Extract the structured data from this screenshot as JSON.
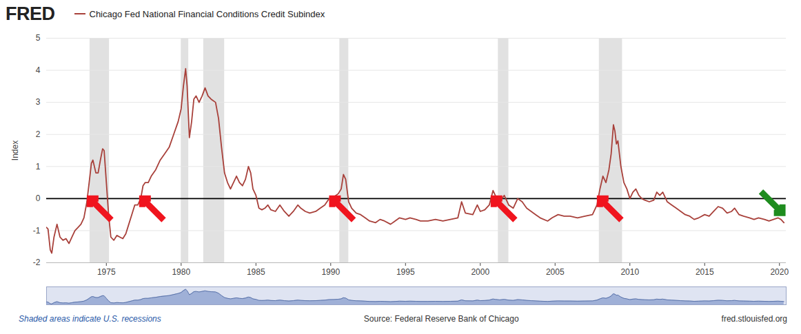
{
  "chart_data": {
    "type": "line",
    "logo": "FRED",
    "ylabel": "Index",
    "note": "Shaded areas indicate U.S. recessions",
    "source": "Source: Federal Reserve Bank of Chicago",
    "url": "fred.stlouisfed.org",
    "xlim": [
      1971,
      2020.45
    ],
    "xticks": [
      1975,
      1980,
      1985,
      1990,
      1995,
      2000,
      2005,
      2010,
      2015,
      2020
    ],
    "ylim": [
      -2,
      5
    ],
    "yticks": [
      -2,
      -1,
      0,
      1,
      2,
      3,
      4,
      5
    ],
    "grid": true,
    "hline": 0,
    "recessions": [
      [
        1973.9,
        1975.2
      ],
      [
        1980.0,
        1980.5
      ],
      [
        1981.5,
        1982.9
      ],
      [
        1990.6,
        1991.2
      ],
      [
        2001.2,
        2001.9
      ],
      [
        2007.95,
        2009.5
      ]
    ],
    "arrows": [
      {
        "x": 1973.9,
        "y": 0,
        "color": "#f0141e",
        "direction": "up-left"
      },
      {
        "x": 1977.4,
        "y": 0,
        "color": "#f0141e",
        "direction": "up-left"
      },
      {
        "x": 1990.1,
        "y": 0,
        "color": "#f0141e",
        "direction": "up-left"
      },
      {
        "x": 2000.9,
        "y": 0,
        "color": "#f0141e",
        "direction": "up-left"
      },
      {
        "x": 2008.0,
        "y": 0,
        "color": "#f0141e",
        "direction": "up-left"
      },
      {
        "x": 2020.2,
        "y": -0.45,
        "color": "#1e8c1e",
        "direction": "down-right"
      }
    ],
    "x": [
      1971.0,
      1971.1,
      1971.25,
      1971.35,
      1971.5,
      1971.7,
      1971.9,
      1972.1,
      1972.3,
      1972.5,
      1972.7,
      1972.9,
      1973.1,
      1973.3,
      1973.5,
      1973.7,
      1973.85,
      1974.0,
      1974.1,
      1974.3,
      1974.45,
      1974.6,
      1974.75,
      1974.85,
      1975.0,
      1975.15,
      1975.3,
      1975.5,
      1975.7,
      1975.9,
      1976.1,
      1976.3,
      1976.5,
      1976.7,
      1976.9,
      1977.1,
      1977.3,
      1977.45,
      1977.6,
      1977.8,
      1978.0,
      1978.3,
      1978.6,
      1978.9,
      1979.2,
      1979.5,
      1979.8,
      1980.0,
      1980.15,
      1980.3,
      1980.4,
      1980.55,
      1980.7,
      1980.85,
      1981.0,
      1981.2,
      1981.4,
      1981.6,
      1981.8,
      1982.0,
      1982.3,
      1982.5,
      1982.7,
      1982.9,
      1983.1,
      1983.3,
      1983.5,
      1983.7,
      1983.9,
      1984.1,
      1984.3,
      1984.5,
      1984.65,
      1984.8,
      1985.0,
      1985.2,
      1985.4,
      1985.6,
      1985.8,
      1986.0,
      1986.3,
      1986.6,
      1986.9,
      1987.2,
      1987.5,
      1987.8,
      1988.0,
      1988.3,
      1988.6,
      1989.0,
      1989.3,
      1989.6,
      1989.9,
      1990.2,
      1990.5,
      1990.7,
      1990.85,
      1991.0,
      1991.2,
      1991.4,
      1991.7,
      1992.0,
      1992.3,
      1992.6,
      1993.0,
      1993.3,
      1993.6,
      1994.0,
      1994.3,
      1994.6,
      1995.0,
      1995.3,
      1995.7,
      1996.0,
      1996.5,
      1997.0,
      1997.5,
      1998.0,
      1998.5,
      1998.75,
      1999.0,
      1999.5,
      1999.8,
      2000.0,
      2000.3,
      2000.6,
      2000.85,
      2001.0,
      2001.3,
      2001.6,
      2001.9,
      2002.2,
      2002.5,
      2002.8,
      2003.1,
      2003.4,
      2003.7,
      2004.0,
      2004.5,
      2004.8,
      2005.2,
      2005.6,
      2006.0,
      2006.5,
      2007.0,
      2007.5,
      2007.8,
      2008.0,
      2008.2,
      2008.4,
      2008.6,
      2008.75,
      2008.9,
      2009.0,
      2009.1,
      2009.2,
      2009.4,
      2009.6,
      2009.8,
      2010.0,
      2010.2,
      2010.4,
      2010.6,
      2010.8,
      2011.0,
      2011.3,
      2011.6,
      2011.8,
      2012.0,
      2012.2,
      2012.5,
      2012.8,
      2013.1,
      2013.4,
      2013.7,
      2014.0,
      2014.3,
      2014.6,
      2015.0,
      2015.3,
      2015.6,
      2015.9,
      2016.2,
      2016.5,
      2016.8,
      2017.0,
      2017.3,
      2017.6,
      2018.0,
      2018.3,
      2018.6,
      2019.0,
      2019.3,
      2019.6,
      2019.9,
      2020.1,
      2020.3
    ],
    "series": [
      {
        "name": "Chicago Fed National Financial Conditions Credit Subindex",
        "color": "#a8403a",
        "values": [
          -0.9,
          -0.95,
          -1.6,
          -1.7,
          -1.2,
          -0.8,
          -1.2,
          -1.3,
          -1.25,
          -1.4,
          -1.2,
          -1.0,
          -0.9,
          -0.8,
          -0.6,
          -0.1,
          0.5,
          1.1,
          1.2,
          0.8,
          0.8,
          1.2,
          1.55,
          1.5,
          0.5,
          -0.5,
          -1.2,
          -1.3,
          -1.15,
          -1.2,
          -1.25,
          -1.1,
          -0.8,
          -0.5,
          -0.2,
          -0.2,
          0.0,
          0.4,
          0.5,
          0.5,
          0.7,
          0.9,
          1.2,
          1.4,
          1.6,
          2.0,
          2.4,
          2.8,
          3.5,
          4.05,
          3.5,
          1.9,
          2.4,
          3.1,
          3.2,
          3.0,
          3.2,
          3.45,
          3.2,
          3.1,
          3.0,
          2.5,
          1.6,
          0.8,
          0.5,
          0.3,
          0.5,
          0.7,
          0.5,
          0.4,
          0.6,
          1.0,
          0.8,
          0.3,
          0.1,
          -0.3,
          -0.35,
          -0.3,
          -0.2,
          -0.35,
          -0.4,
          -0.2,
          -0.4,
          -0.55,
          -0.4,
          -0.2,
          -0.3,
          -0.4,
          -0.45,
          -0.4,
          -0.3,
          -0.2,
          0.0,
          0.05,
          0.15,
          0.3,
          0.75,
          0.6,
          -0.1,
          -0.3,
          -0.45,
          -0.5,
          -0.6,
          -0.7,
          -0.75,
          -0.65,
          -0.7,
          -0.8,
          -0.7,
          -0.6,
          -0.65,
          -0.6,
          -0.65,
          -0.7,
          -0.7,
          -0.65,
          -0.7,
          -0.65,
          -0.6,
          -0.1,
          -0.45,
          -0.5,
          -0.2,
          -0.4,
          -0.35,
          -0.2,
          0.25,
          0.1,
          -0.1,
          0.1,
          -0.2,
          -0.3,
          0.0,
          -0.1,
          -0.3,
          -0.4,
          -0.5,
          -0.6,
          -0.7,
          -0.6,
          -0.5,
          -0.55,
          -0.55,
          -0.6,
          -0.55,
          -0.5,
          -0.2,
          0.3,
          0.7,
          0.5,
          0.9,
          1.4,
          2.3,
          2.1,
          1.7,
          1.8,
          1.0,
          0.5,
          0.3,
          0.0,
          0.2,
          0.3,
          0.1,
          0.0,
          -0.05,
          -0.1,
          -0.05,
          0.2,
          0.1,
          0.2,
          -0.1,
          -0.2,
          -0.3,
          -0.4,
          -0.5,
          -0.55,
          -0.65,
          -0.6,
          -0.5,
          -0.55,
          -0.4,
          -0.25,
          -0.3,
          -0.45,
          -0.4,
          -0.3,
          -0.5,
          -0.55,
          -0.6,
          -0.65,
          -0.6,
          -0.65,
          -0.7,
          -0.65,
          -0.6,
          -0.65,
          -0.75
        ]
      }
    ]
  }
}
